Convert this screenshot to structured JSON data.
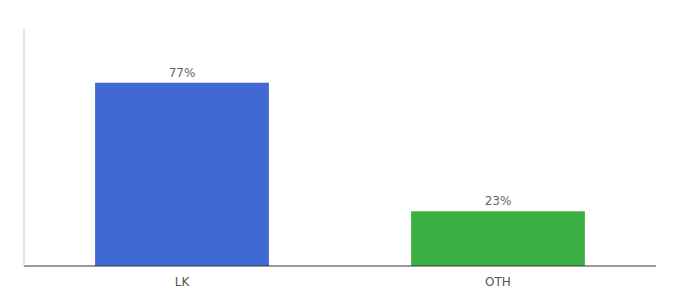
{
  "chart_data": {
    "type": "bar",
    "categories": [
      "LK",
      "OTH"
    ],
    "values": [
      77,
      23
    ],
    "value_labels": [
      "77%",
      "23%"
    ],
    "colors": [
      "#4169d4",
      "#3cb043"
    ],
    "ylim": [
      0,
      100
    ],
    "data_labels": true,
    "grid": false,
    "tick_labels": "x"
  }
}
